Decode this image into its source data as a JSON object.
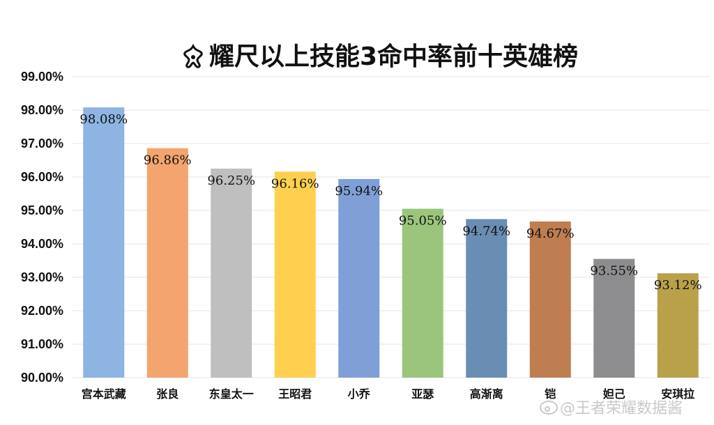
{
  "chart_data": {
    "type": "bar",
    "title": "耀尺以上技能3命中率前十英雄榜",
    "title_icon": "flower-icon",
    "categories": [
      "宫本武藏",
      "张良",
      "东皇太一",
      "王昭君",
      "小乔",
      "亚瑟",
      "高渐离",
      "铠",
      "妲己",
      "安琪拉"
    ],
    "values": [
      98.08,
      96.86,
      96.25,
      96.16,
      95.94,
      95.05,
      94.74,
      94.67,
      93.55,
      93.12
    ],
    "data_labels": [
      "98.08%",
      "96.86%",
      "96.25%",
      "96.16%",
      "95.94%",
      "95.05%",
      "94.74%",
      "94.67%",
      "93.55%",
      "93.12%"
    ],
    "colors": [
      "#8db4e2",
      "#f4a46f",
      "#c0bfc0",
      "#ffd04f",
      "#7f9fd6",
      "#9bc57c",
      "#6a8db3",
      "#bf7d52",
      "#8d8c8e",
      "#b9a14a"
    ],
    "ylim": [
      90,
      99
    ],
    "yticks": [
      90,
      91,
      92,
      93,
      94,
      95,
      96,
      97,
      98,
      99
    ],
    "ytick_labels": [
      "90.00%",
      "91.00%",
      "92.00%",
      "93.00%",
      "94.00%",
      "95.00%",
      "96.00%",
      "97.00%",
      "98.00%",
      "99.00%"
    ],
    "xlabel": "",
    "ylabel": "",
    "grid": true,
    "legend": "none"
  },
  "watermark": "@王者荣耀数据酱"
}
